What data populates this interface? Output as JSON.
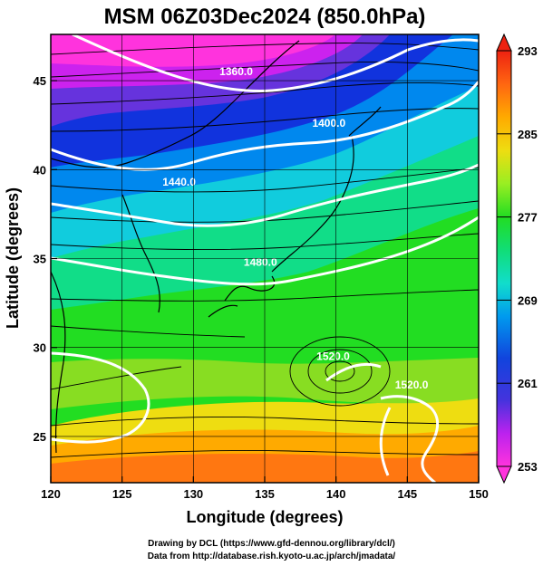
{
  "title": "MSM 06Z03Dec2024 (850.0hPa)",
  "xlabel": "Longitude (degrees)",
  "ylabel": "Latitude (degrees)",
  "colorbar": {
    "min": 253,
    "max": 293,
    "tick_labels": [
      "293",
      "285",
      "277",
      "269",
      "261",
      "253"
    ],
    "tick_values": [
      293,
      285,
      277,
      269,
      261,
      253
    ]
  },
  "chart_data": {
    "type": "heatmap",
    "title": "MSM 06Z03Dec2024 (850.0hPa)",
    "xlabel": "Longitude (degrees)",
    "ylabel": "Latitude (degrees)",
    "xlim": [
      120,
      150
    ],
    "ylim": [
      22.4,
      47.6
    ],
    "x_ticks": [
      120,
      125,
      130,
      135,
      140,
      145,
      150
    ],
    "y_ticks": [
      25,
      30,
      35,
      40,
      45
    ],
    "x_tick_labels": [
      "120",
      "125",
      "130",
      "135",
      "140",
      "145",
      "150"
    ],
    "y_tick_labels": [
      "25",
      "30",
      "35",
      "40",
      "45"
    ],
    "grid": true,
    "contour_labels": [
      {
        "text": "1360.0",
        "lon": 133.0,
        "lat": 45.3
      },
      {
        "text": "1400.0",
        "lon": 139.5,
        "lat": 42.4
      },
      {
        "text": "1440.0",
        "lon": 129.0,
        "lat": 39.1
      },
      {
        "text": "1480.0",
        "lon": 134.7,
        "lat": 34.6
      },
      {
        "text": "1520.0",
        "lon": 139.8,
        "lat": 29.3
      },
      {
        "text": "1520.0",
        "lon": 145.3,
        "lat": 27.7
      }
    ]
  },
  "credits": [
    "Drawing by DCL (https://www.gfd-dennou.org/library/dcl/)",
    "Data from http://database.rish.kyoto-u.ac.jp/arch/jmadata/"
  ],
  "colors": {
    "scale": [
      "#ff33dd",
      "#cc22ee",
      "#6633dd",
      "#1133dd",
      "#0088ee",
      "#11ccdd",
      "#11dd88",
      "#22dd22",
      "#88dd22",
      "#ccee11",
      "#eedd11",
      "#ffaa00",
      "#ff5511",
      "#ee2211"
    ]
  }
}
